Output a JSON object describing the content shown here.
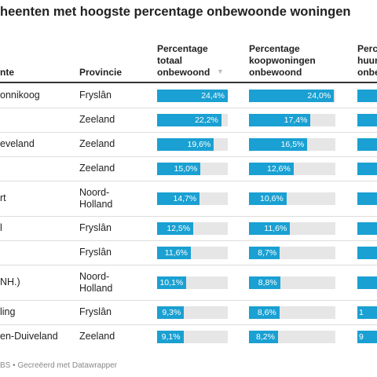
{
  "header": {
    "title": "heenten met hoogste percentage onbewoonde woningen"
  },
  "table": {
    "columns": [
      "nte",
      "Provincie",
      "Percentage totaal onbewoond",
      "Percentage koopwoningen onbewoond",
      "Perc huur onbe"
    ],
    "rows": [
      {
        "gemeente": "onnikoog",
        "provincie": "Fryslân",
        "totaal": 24.4,
        "totaal_label": "24,4%",
        "koop": 24.0,
        "koop_label": "24,0%"
      },
      {
        "provincie": "Zeeland",
        "totaal": 22.2,
        "totaal_label": "22,2%",
        "koop": 17.4,
        "koop_label": "17,4%"
      },
      {
        "gemeente": "eveland",
        "provincie": "Zeeland",
        "totaal": 19.6,
        "totaal_label": "19,6%",
        "koop": 16.5,
        "koop_label": "16,5%"
      },
      {
        "provincie": "Zeeland",
        "totaal": 15.0,
        "totaal_label": "15,0%",
        "koop": 12.6,
        "koop_label": "12,6%"
      },
      {
        "gemeente": "rt",
        "provincie": "Noord-Holland",
        "totaal": 14.7,
        "totaal_label": "14,7%",
        "koop": 10.6,
        "koop_label": "10,6%"
      },
      {
        "gemeente": "l",
        "provincie": "Fryslân",
        "totaal": 12.5,
        "totaal_label": "12,5%",
        "koop": 11.6,
        "koop_label": "11,6%"
      },
      {
        "provincie": "Fryslân",
        "totaal": 11.6,
        "totaal_label": "11,6%",
        "koop": 8.7,
        "koop_label": "8,7%"
      },
      {
        "gemeente": "NH.)",
        "provincie": "Noord-Holland",
        "totaal": 10.1,
        "totaal_label": "10,1%",
        "koop": 8.8,
        "koop_label": "8,8%"
      },
      {
        "gemeente": "ling",
        "provincie": "Fryslân",
        "totaal": 9.3,
        "totaal_label": "9,3%",
        "koop": 8.6,
        "koop_label": "8,6%",
        "huur_label": "1"
      },
      {
        "gemeente": "en-Duiveland",
        "provincie": "Zeeland",
        "totaal": 9.1,
        "totaal_label": "9,1%",
        "koop": 8.2,
        "koop_label": "8,2%",
        "huur_label": "9"
      }
    ]
  },
  "footer": "BS • Gecreëerd met Datawrapper"
}
